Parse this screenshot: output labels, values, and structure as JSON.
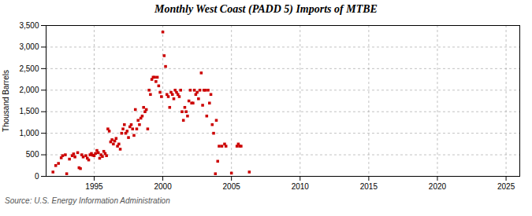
{
  "chart_data": {
    "type": "scatter",
    "title": "Monthly West Coast (PADD 5) Imports of MTBE",
    "ylabel": "Thousand Barrels",
    "source": "Source: U.S. Energy Information Administration",
    "color": "#cc0000",
    "marker": "square",
    "grid": true,
    "xlim": [
      1991.5,
      2026
    ],
    "ylim": [
      0,
      3500
    ],
    "xticks": [
      1995,
      2000,
      2005,
      2010,
      2015,
      2020,
      2025
    ],
    "yticks": [
      0,
      500,
      {
        "value": 1000,
        "label": "1,000"
      },
      {
        "value": 1500,
        "label": "1,500"
      },
      {
        "value": 2000,
        "label": "2,000"
      },
      {
        "value": 2500,
        "label": "2,500"
      },
      {
        "value": 3000,
        "label": "3,000"
      },
      {
        "value": 3500,
        "label": "3,500"
      }
    ],
    "x": [
      1992.0,
      1992.2,
      1992.4,
      1992.6,
      1992.7,
      1992.9,
      1993.0,
      1993.2,
      1993.4,
      1993.5,
      1993.6,
      1993.8,
      1993.9,
      1994.0,
      1994.1,
      1994.2,
      1994.4,
      1994.5,
      1994.6,
      1994.7,
      1994.8,
      1994.9,
      1995.0,
      1995.1,
      1995.2,
      1995.3,
      1995.4,
      1995.5,
      1995.6,
      1995.7,
      1995.8,
      1995.9,
      1996.0,
      1996.1,
      1996.2,
      1996.3,
      1996.4,
      1996.5,
      1996.6,
      1996.7,
      1996.8,
      1996.9,
      1997.0,
      1997.1,
      1997.2,
      1997.3,
      1997.4,
      1997.5,
      1997.6,
      1997.7,
      1997.8,
      1997.9,
      1998.0,
      1998.1,
      1998.2,
      1998.3,
      1998.4,
      1998.5,
      1998.6,
      1998.7,
      1998.8,
      1998.9,
      1999.0,
      1999.1,
      1999.2,
      1999.3,
      1999.4,
      1999.5,
      1999.6,
      1999.7,
      1999.8,
      1999.9,
      2000.0,
      2000.1,
      2000.2,
      2000.3,
      2000.4,
      2000.5,
      2000.6,
      2000.7,
      2000.8,
      2000.9,
      2001.0,
      2001.1,
      2001.2,
      2001.3,
      2001.4,
      2001.5,
      2001.6,
      2001.7,
      2001.8,
      2001.9,
      2002.0,
      2002.1,
      2002.2,
      2002.3,
      2002.4,
      2002.5,
      2002.6,
      2002.7,
      2002.8,
      2002.9,
      2003.0,
      2003.1,
      2003.2,
      2003.3,
      2003.4,
      2003.5,
      2003.6,
      2003.7,
      2003.83,
      2003.9,
      2004.0,
      2004.1,
      2004.3,
      2004.5,
      2004.6,
      2005.0,
      2005.4,
      2005.5,
      2005.6,
      2005.7,
      2006.3
    ],
    "values": [
      100,
      250,
      300,
      430,
      480,
      500,
      60,
      400,
      480,
      520,
      450,
      550,
      200,
      180,
      500,
      450,
      480,
      420,
      380,
      500,
      530,
      490,
      480,
      530,
      600,
      550,
      420,
      500,
      460,
      580,
      530,
      480,
      1100,
      1050,
      800,
      850,
      750,
      820,
      880,
      700,
      750,
      630,
      1000,
      1100,
      1200,
      1000,
      1050,
      900,
      1150,
      1200,
      1100,
      950,
      1550,
      1100,
      1300,
      1200,
      1350,
      1400,
      1600,
      1500,
      1550,
      1100,
      2000,
      1900,
      2250,
      2300,
      2300,
      2200,
      2300,
      2100,
      1950,
      1850,
      3350,
      2800,
      2550,
      1900,
      1850,
      1600,
      1950,
      1900,
      1800,
      2000,
      1950,
      1900,
      1850,
      2000,
      1500,
      1300,
      1600,
      1500,
      1400,
      1750,
      2000,
      1700,
      1700,
      2000,
      1900,
      1950,
      1800,
      2000,
      2400,
      1650,
      2000,
      2000,
      1400,
      2000,
      1700,
      1900,
      1200,
      1000,
      60,
      1300,
      350,
      700,
      700,
      750,
      700,
      75,
      700,
      750,
      700,
      700,
      100
    ]
  }
}
